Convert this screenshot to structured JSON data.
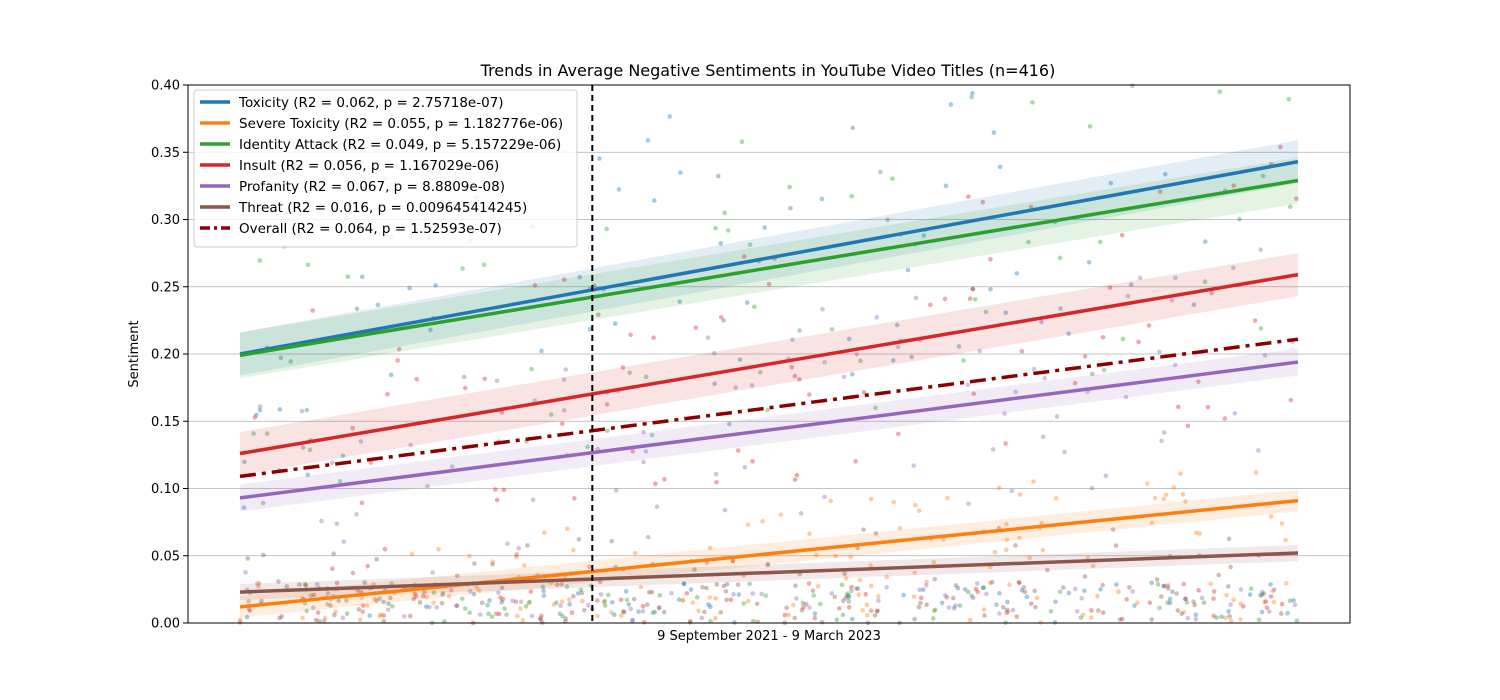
{
  "chart_data": {
    "type": "scatter",
    "title": "Trends in Average Negative Sentiments in YouTube Video Titles (n=416)",
    "xlabel": "9 September 2021 - 9 March 2023",
    "ylabel": "Sentiment",
    "xlim": [
      0,
      1
    ],
    "ylim": [
      0,
      0.4
    ],
    "y_ticks": [
      "0.00",
      "0.05",
      "0.10",
      "0.15",
      "0.20",
      "0.25",
      "0.30",
      "0.35",
      "0.40"
    ],
    "grid": "horizontal",
    "legend_position": "top-left",
    "marker_x": 0.333,
    "series": [
      {
        "name": "Toxicity (R2 = 0.062, p = 2.75718e-07)",
        "color": "#1f77b4",
        "style": "solid",
        "start": 0.2,
        "end": 0.343,
        "band": 0.016
      },
      {
        "name": "Severe Toxicity (R2 = 0.055, p = 1.182776e-06)",
        "color": "#ff7f0e",
        "style": "solid",
        "start": 0.012,
        "end": 0.091,
        "band": 0.008
      },
      {
        "name": "Identity Attack (R2 = 0.049, p = 5.157229e-06)",
        "color": "#2ca02c",
        "style": "solid",
        "start": 0.199,
        "end": 0.329,
        "band": 0.017
      },
      {
        "name": "Insult (R2 = 0.056, p = 1.167029e-06)",
        "color": "#d62728",
        "style": "solid",
        "start": 0.126,
        "end": 0.259,
        "band": 0.016
      },
      {
        "name": "Profanity (R2 = 0.067, p = 8.8809e-08)",
        "color": "#9467bd",
        "style": "solid",
        "start": 0.093,
        "end": 0.194,
        "band": 0.01
      },
      {
        "name": "Threat (R2 = 0.016, p = 0.009645414245)",
        "color": "#8c564b",
        "style": "solid",
        "start": 0.023,
        "end": 0.052,
        "band": 0.006
      },
      {
        "name": "Overall (R2 = 0.064, p = 1.52593e-07)",
        "color": "#8b0000",
        "style": "dashdot",
        "start": 0.109,
        "end": 0.211,
        "band": 0
      }
    ]
  }
}
